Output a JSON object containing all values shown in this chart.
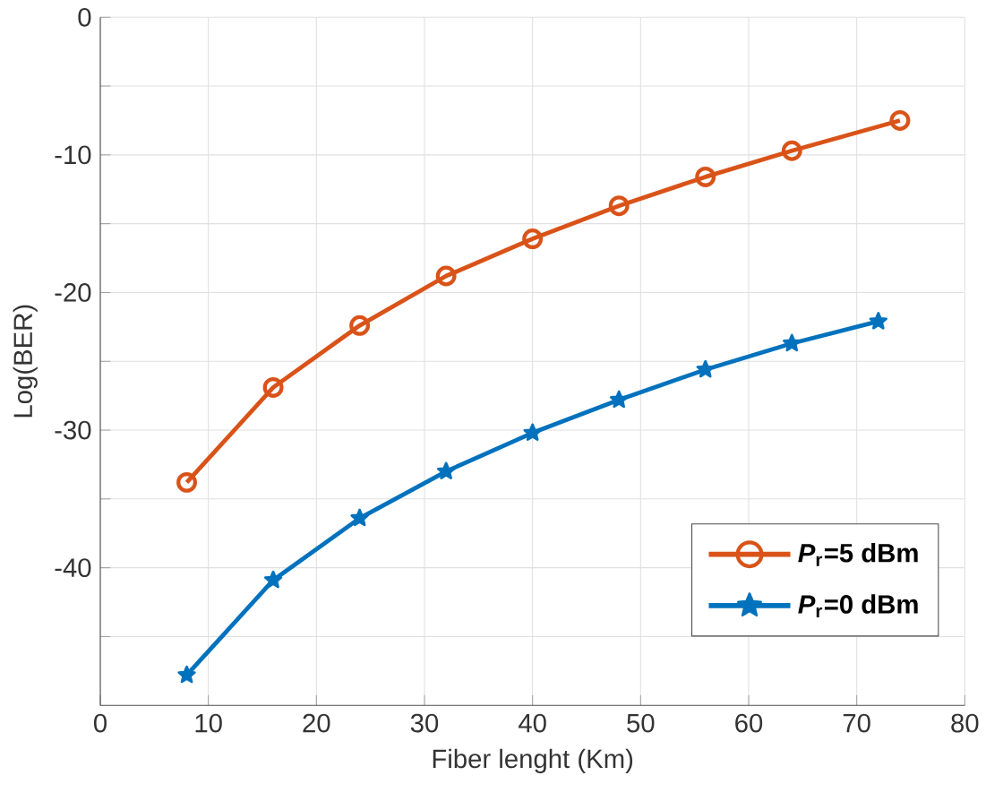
{
  "chart_data": {
    "type": "line",
    "xlabel": "Fiber lenght (Km)",
    "ylabel": "Log(BER)",
    "xlim": [
      0,
      80
    ],
    "xticks": [
      0,
      10,
      20,
      30,
      40,
      50,
      60,
      70,
      80
    ],
    "ylim": [
      -50,
      0
    ],
    "yticks": [
      {
        "value": -45,
        "label": null
      },
      -40,
      {
        "value": -35,
        "label": null
      },
      -30,
      {
        "value": -25,
        "label": null
      },
      -20,
      {
        "value": -15,
        "label": null
      },
      -10,
      {
        "value": -5,
        "label": null
      },
      0
    ],
    "grid": true,
    "legend": "bottom right",
    "line_style": "solid",
    "series": [
      {
        "name": "*P*$_{r}$=5 dBm",
        "color": "#d95319",
        "marker": "circle",
        "x": [
          8,
          16,
          24,
          32,
          40,
          48,
          56,
          64,
          74
        ],
        "values": [
          -33.8,
          -26.9,
          -22.4,
          -18.8,
          -16.1,
          -13.7,
          -11.6,
          -9.7,
          -7.5
        ]
      },
      {
        "name": "*P*$_{r}$=0 dBm",
        "color": "#0072bd",
        "marker": "star",
        "x": [
          8,
          16,
          24,
          32,
          40,
          48,
          56,
          64,
          72
        ],
        "values": [
          -47.8,
          -40.9,
          -36.4,
          -33.0,
          -30.2,
          -27.8,
          -25.6,
          -23.7,
          -22.1
        ]
      }
    ]
  }
}
